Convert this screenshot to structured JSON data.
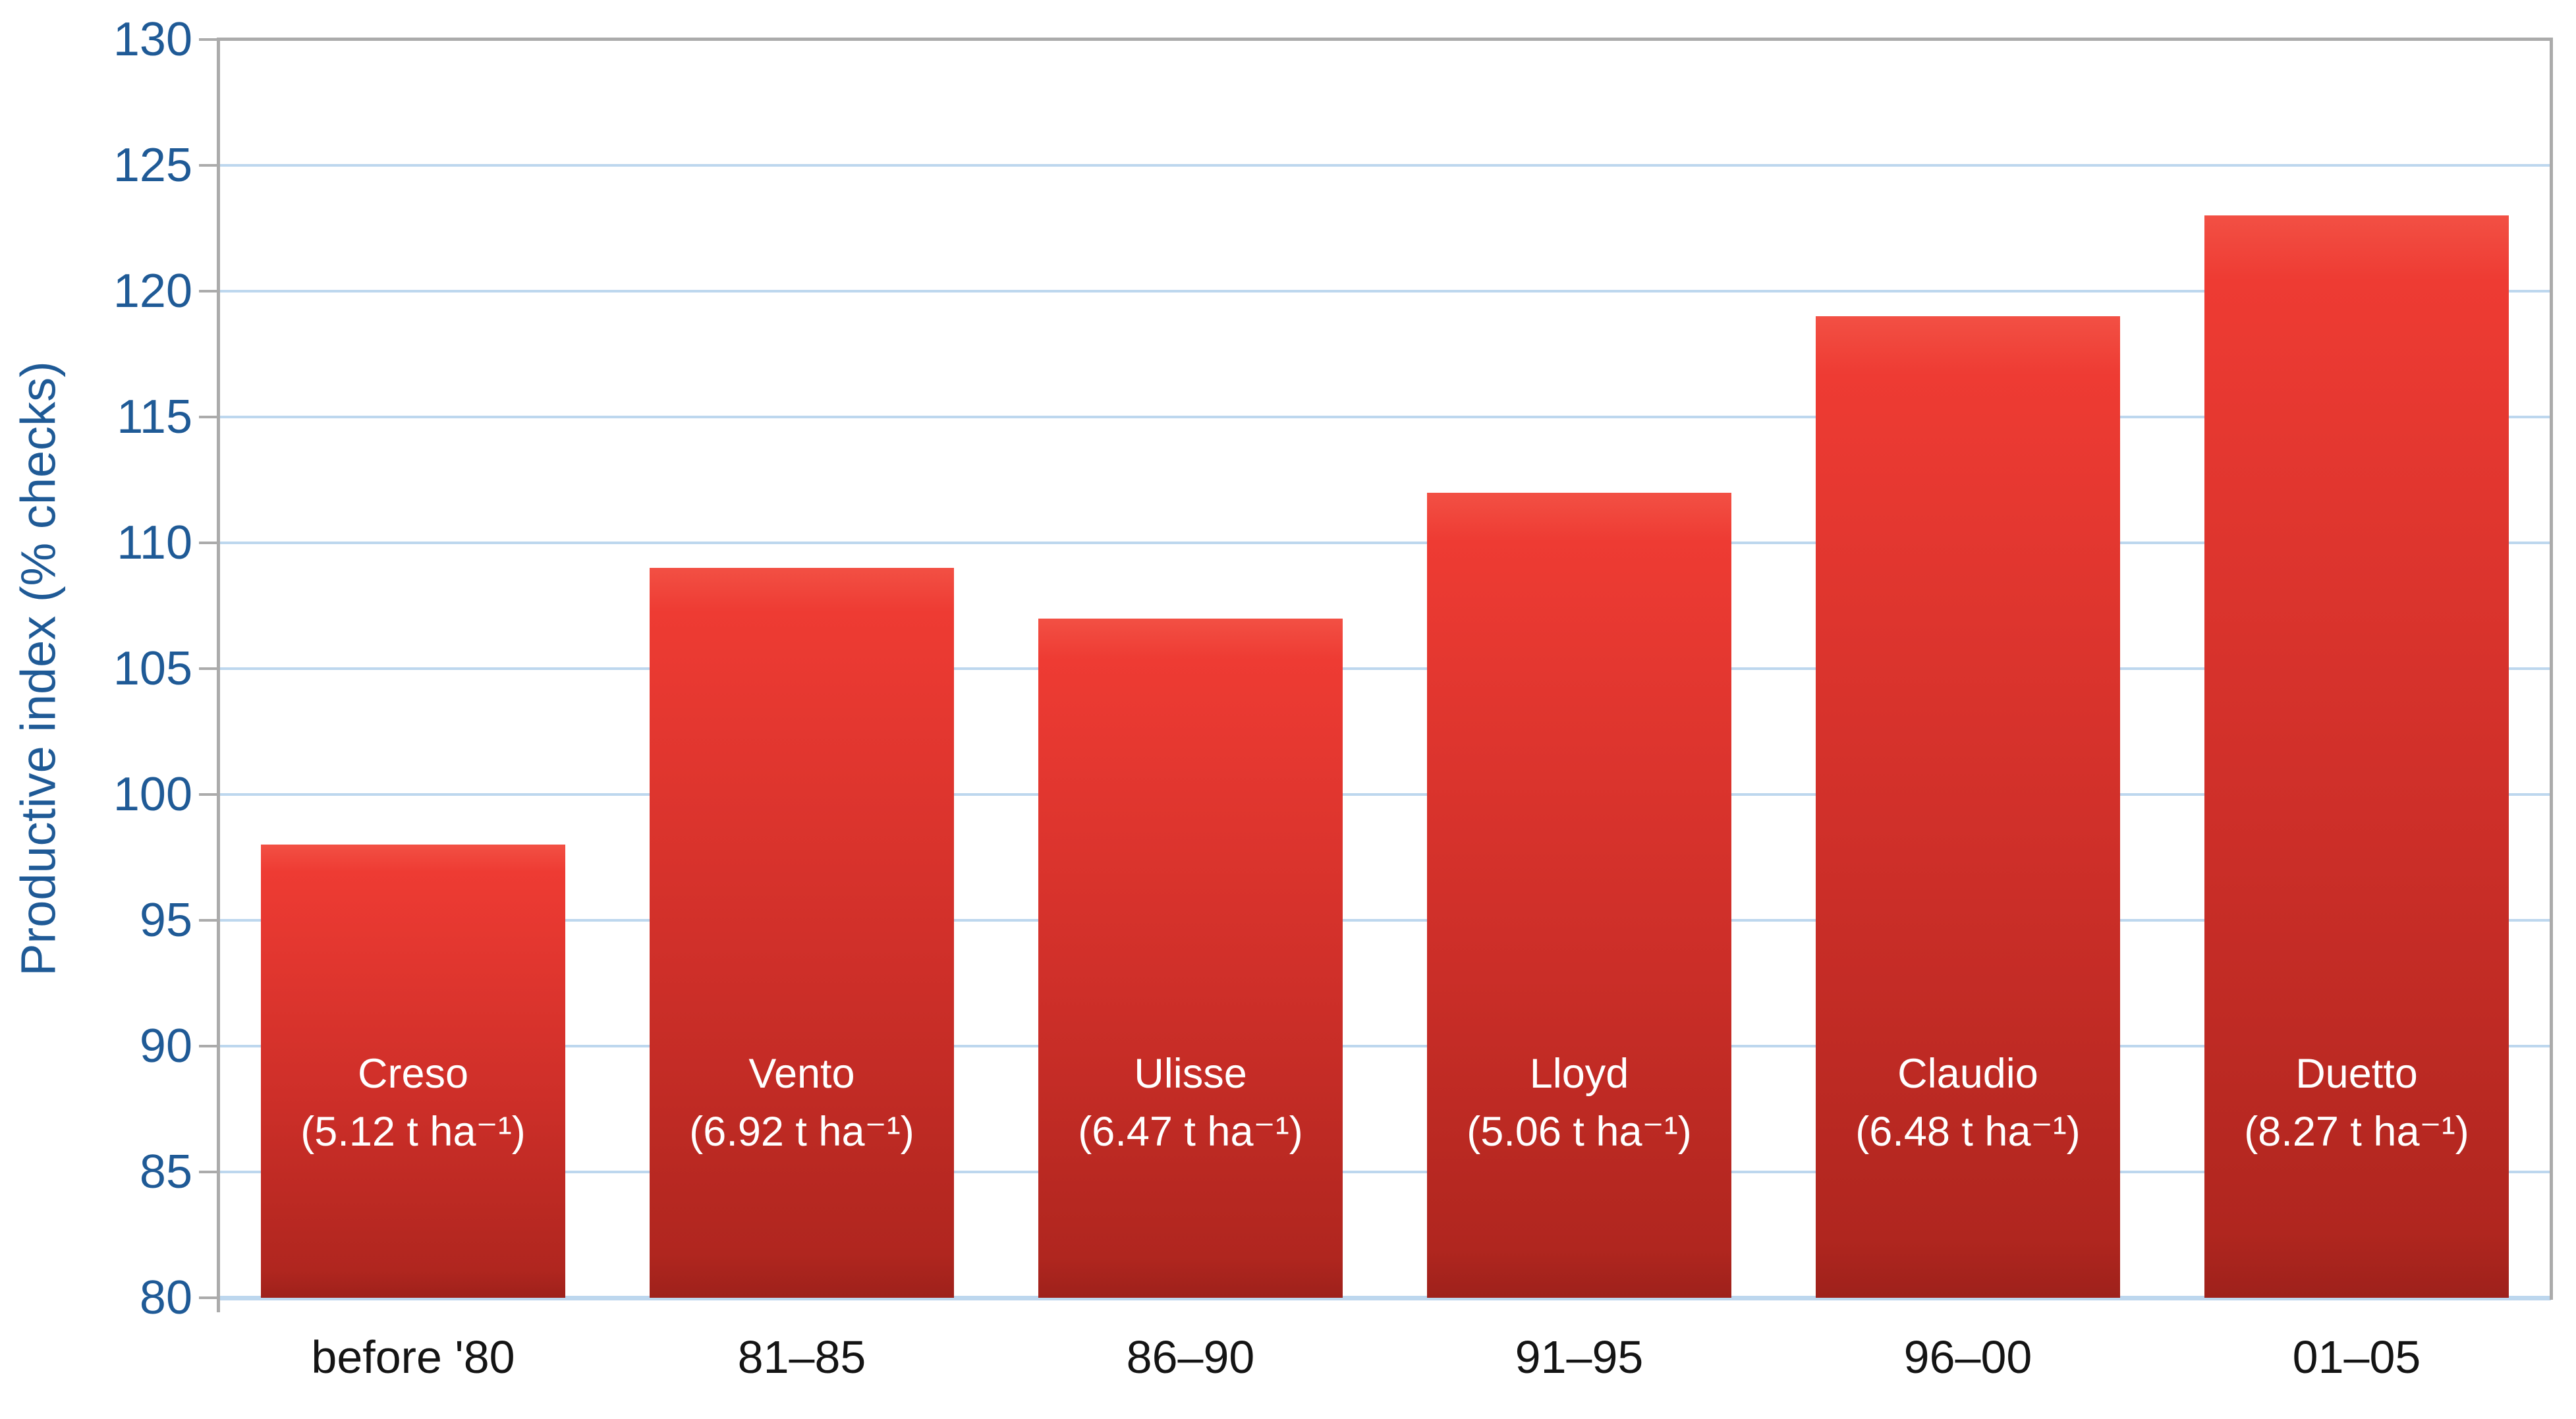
{
  "chart_data": {
    "type": "bar",
    "title": "",
    "xlabel": "",
    "ylabel": "Productive index (% checks)",
    "ylim": [
      80,
      130
    ],
    "ytick_step": 5,
    "grid": true,
    "legend_position": "none",
    "categories": [
      "before '80",
      "81–85",
      "86–90",
      "91–95",
      "96–00",
      "01–05"
    ],
    "bars": [
      {
        "category": "before '80",
        "value": 98,
        "variety": "Creso",
        "yield_label": "(5.12 t ha⁻¹)"
      },
      {
        "category": "81–85",
        "value": 109,
        "variety": "Vento",
        "yield_label": "(6.92 t ha⁻¹)"
      },
      {
        "category": "86–90",
        "value": 107,
        "variety": "Ulisse",
        "yield_label": "(6.47 t ha⁻¹)"
      },
      {
        "category": "91–95",
        "value": 112,
        "variety": "Lloyd",
        "yield_label": "(5.06 t ha⁻¹)"
      },
      {
        "category": "96–00",
        "value": 119,
        "variety": "Claudio",
        "yield_label": "(6.48 t ha⁻¹)"
      },
      {
        "category": "01–05",
        "value": 123,
        "variety": "Duetto",
        "yield_label": "(8.27 t ha⁻¹)"
      }
    ],
    "colors": {
      "bar_gradient_top_edge": "#F25044",
      "bar_gradient_top": "#EE3B33",
      "bar_gradient_mid": "#CE2F29",
      "bar_gradient_bottom": "#B0261F",
      "bar_bottom_edge": "#9E211B",
      "gridline": "#BDD7EE",
      "baseline": "#BDD7EE",
      "axis_line": "#ABABAB",
      "y_tick_label": "#1F5A96",
      "y_axis_title": "#1F5A96",
      "x_tick_label": "#141414",
      "bar_label": "#FFFFFF",
      "background": "#FFFFFF"
    }
  }
}
